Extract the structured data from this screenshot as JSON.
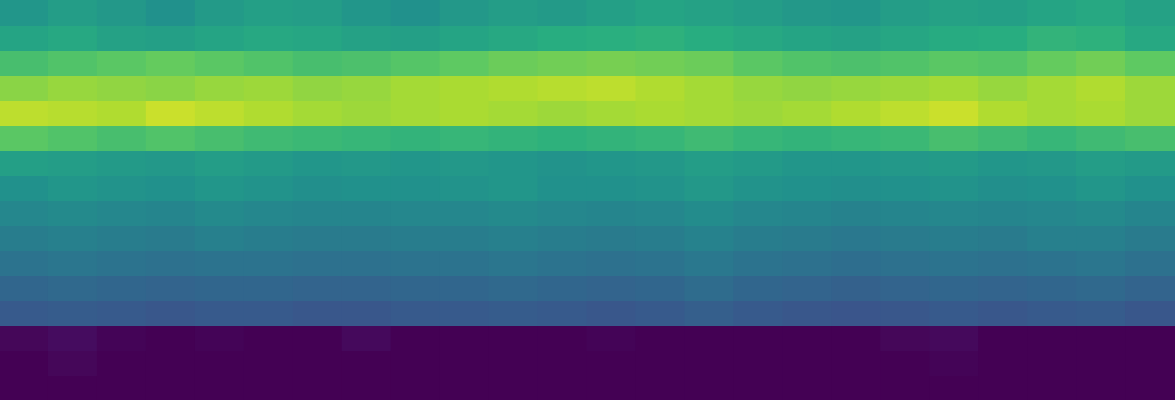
{
  "chart_data": {
    "type": "heatmap",
    "color": "viridis",
    "grid": false,
    "tick_labels": false,
    "categories": [
      null,
      null,
      null,
      null,
      null,
      null,
      null,
      null,
      null,
      null,
      null,
      null,
      null,
      null,
      null,
      null,
      null,
      null,
      null,
      null,
      null,
      null,
      null,
      null
    ],
    "ylim": [
      0,
      16
    ],
    "color_range": [
      0,
      1
    ],
    "cells": [
      [
        0.52,
        0.55,
        0.53,
        0.5,
        0.54,
        0.56,
        0.55,
        0.52,
        0.5,
        0.53,
        0.55,
        0.54,
        0.56,
        0.58,
        0.57,
        0.55,
        0.53,
        0.52,
        0.55,
        0.57,
        0.56,
        0.58,
        0.6,
        0.57
      ],
      [
        0.58,
        0.6,
        0.57,
        0.56,
        0.58,
        0.6,
        0.59,
        0.57,
        0.56,
        0.58,
        0.6,
        0.62,
        0.63,
        0.64,
        0.62,
        0.6,
        0.58,
        0.57,
        0.59,
        0.61,
        0.62,
        0.65,
        0.64,
        0.6
      ],
      [
        0.7,
        0.72,
        0.74,
        0.76,
        0.74,
        0.72,
        0.7,
        0.71,
        0.73,
        0.75,
        0.77,
        0.78,
        0.79,
        0.78,
        0.77,
        0.74,
        0.72,
        0.71,
        0.72,
        0.74,
        0.73,
        0.76,
        0.78,
        0.75
      ],
      [
        0.82,
        0.84,
        0.83,
        0.82,
        0.84,
        0.85,
        0.83,
        0.84,
        0.86,
        0.87,
        0.88,
        0.89,
        0.9,
        0.88,
        0.86,
        0.84,
        0.83,
        0.84,
        0.85,
        0.86,
        0.84,
        0.86,
        0.88,
        0.85
      ],
      [
        0.9,
        0.89,
        0.88,
        0.92,
        0.9,
        0.88,
        0.86,
        0.85,
        0.86,
        0.87,
        0.86,
        0.85,
        0.86,
        0.87,
        0.86,
        0.85,
        0.86,
        0.88,
        0.9,
        0.92,
        0.88,
        0.86,
        0.87,
        0.85
      ],
      [
        0.74,
        0.72,
        0.7,
        0.72,
        0.7,
        0.68,
        0.67,
        0.66,
        0.65,
        0.66,
        0.65,
        0.64,
        0.65,
        0.66,
        0.68,
        0.66,
        0.65,
        0.66,
        0.67,
        0.7,
        0.68,
        0.66,
        0.68,
        0.7
      ],
      [
        0.56,
        0.55,
        0.54,
        0.53,
        0.55,
        0.54,
        0.52,
        0.53,
        0.52,
        0.53,
        0.52,
        0.51,
        0.52,
        0.53,
        0.55,
        0.54,
        0.52,
        0.52,
        0.53,
        0.54,
        0.52,
        0.53,
        0.55,
        0.54
      ],
      [
        0.5,
        0.52,
        0.51,
        0.5,
        0.52,
        0.51,
        0.49,
        0.5,
        0.5,
        0.51,
        0.52,
        0.5,
        0.5,
        0.51,
        0.53,
        0.51,
        0.5,
        0.49,
        0.5,
        0.51,
        0.49,
        0.5,
        0.52,
        0.5
      ],
      [
        0.46,
        0.47,
        0.46,
        0.45,
        0.47,
        0.46,
        0.45,
        0.45,
        0.46,
        0.46,
        0.47,
        0.46,
        0.45,
        0.46,
        0.48,
        0.46,
        0.45,
        0.44,
        0.45,
        0.46,
        0.45,
        0.46,
        0.47,
        0.45
      ],
      [
        0.42,
        0.43,
        0.42,
        0.41,
        0.43,
        0.42,
        0.41,
        0.41,
        0.42,
        0.42,
        0.43,
        0.42,
        0.41,
        0.42,
        0.44,
        0.42,
        0.41,
        0.4,
        0.41,
        0.42,
        0.41,
        0.43,
        0.43,
        0.41
      ],
      [
        0.38,
        0.39,
        0.38,
        0.37,
        0.38,
        0.38,
        0.37,
        0.37,
        0.38,
        0.38,
        0.39,
        0.38,
        0.37,
        0.38,
        0.4,
        0.38,
        0.37,
        0.36,
        0.37,
        0.38,
        0.37,
        0.38,
        0.39,
        0.37
      ],
      [
        0.33,
        0.34,
        0.33,
        0.32,
        0.33,
        0.33,
        0.32,
        0.32,
        0.33,
        0.33,
        0.34,
        0.33,
        0.32,
        0.33,
        0.35,
        0.33,
        0.32,
        0.31,
        0.32,
        0.33,
        0.32,
        0.33,
        0.34,
        0.32
      ],
      [
        0.28,
        0.29,
        0.28,
        0.27,
        0.28,
        0.28,
        0.27,
        0.27,
        0.28,
        0.28,
        0.29,
        0.28,
        0.27,
        0.28,
        0.3,
        0.28,
        0.27,
        0.26,
        0.27,
        0.28,
        0.27,
        0.28,
        0.29,
        0.27
      ],
      [
        0.02,
        0.04,
        0.01,
        0.0,
        0.01,
        0.0,
        0.0,
        0.03,
        0.0,
        0.0,
        0.0,
        0.0,
        0.01,
        0.0,
        0.0,
        0.0,
        0.0,
        0.0,
        0.02,
        0.03,
        0.0,
        0.0,
        0.0,
        0.0
      ],
      [
        0.0,
        0.02,
        0.0,
        0.0,
        0.0,
        0.0,
        0.0,
        0.0,
        0.0,
        0.0,
        0.0,
        0.0,
        0.0,
        0.0,
        0.0,
        0.0,
        0.0,
        0.0,
        0.0,
        0.01,
        0.0,
        0.0,
        0.0,
        0.0
      ],
      [
        0.0,
        0.0,
        0.0,
        0.0,
        0.0,
        0.0,
        0.0,
        0.0,
        0.0,
        0.0,
        0.0,
        0.0,
        0.0,
        0.0,
        0.0,
        0.0,
        0.0,
        0.0,
        0.0,
        0.0,
        0.0,
        0.0,
        0.0,
        0.0
      ]
    ]
  }
}
